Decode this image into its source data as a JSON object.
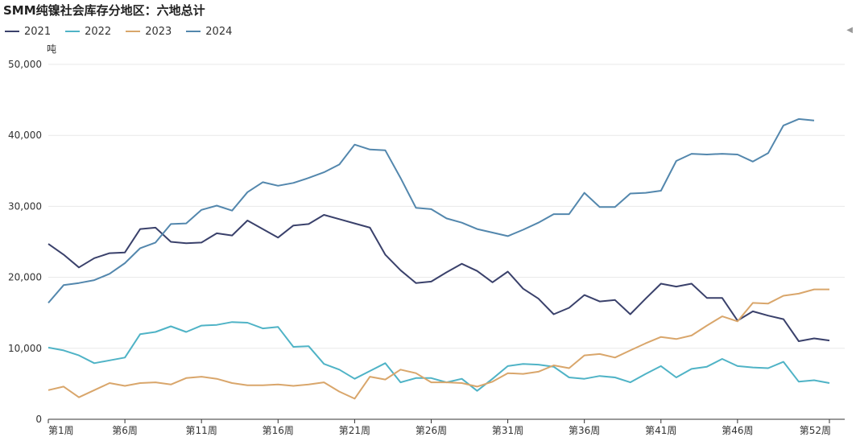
{
  "chart_data": {
    "type": "line",
    "title": "SMM纯镍社会库存分地区：六地总计",
    "unit": "吨",
    "x": [
      "第1周",
      "第2周",
      "第3周",
      "第4周",
      "第5周",
      "第6周",
      "第7周",
      "第8周",
      "第9周",
      "第10周",
      "第11周",
      "第12周",
      "第13周",
      "第14周",
      "第15周",
      "第16周",
      "第17周",
      "第18周",
      "第19周",
      "第20周",
      "第21周",
      "第22周",
      "第23周",
      "第24周",
      "第25周",
      "第26周",
      "第27周",
      "第28周",
      "第29周",
      "第30周",
      "第31周",
      "第32周",
      "第33周",
      "第34周",
      "第35周",
      "第36周",
      "第37周",
      "第38周",
      "第39周",
      "第40周",
      "第41周",
      "第42周",
      "第43周",
      "第44周",
      "第45周",
      "第46周",
      "第47周",
      "第48周",
      "第49周",
      "第50周",
      "第51周",
      "第52周",
      "第53周"
    ],
    "x_tick_labels": [
      "第1周",
      "第6周",
      "第11周",
      "第16周",
      "第21周",
      "第26周",
      "第31周",
      "第36周",
      "第41周",
      "第46周",
      "第52周"
    ],
    "y_tick_labels": [
      "0",
      "10,000",
      "20,000",
      "30,000",
      "40,000",
      "50,000"
    ],
    "ylim": [
      0,
      50000
    ],
    "legend_position": "top-left",
    "grid": true,
    "series": [
      {
        "name": "2021",
        "color": "#3a416b",
        "values": [
          24700,
          23200,
          21400,
          22700,
          23400,
          23500,
          26800,
          27000,
          25000,
          24800,
          24900,
          26200,
          25900,
          28000,
          26800,
          25600,
          27300,
          27500,
          28800,
          28200,
          27600,
          27000,
          23200,
          21000,
          19200,
          19400,
          20700,
          21900,
          20900,
          19300,
          20800,
          18400,
          17000,
          14800,
          15700,
          17500,
          16600,
          16800,
          14800,
          17000,
          19100,
          18700,
          19100,
          17100,
          17100,
          13900,
          15200,
          14600,
          14100,
          11000,
          11400,
          11100,
          null
        ]
      },
      {
        "name": "2022",
        "color": "#4fb3c6",
        "values": [
          10100,
          9700,
          9000,
          7900,
          8300,
          8700,
          12000,
          12300,
          13100,
          12300,
          13200,
          13300,
          13700,
          13600,
          12800,
          13000,
          10200,
          10300,
          7800,
          7000,
          5700,
          6800,
          7900,
          5200,
          5800,
          5800,
          5200,
          5700,
          4000,
          5700,
          7500,
          7800,
          7700,
          7400,
          5900,
          5700,
          6100,
          5900,
          5200,
          6400,
          7500,
          5900,
          7100,
          7400,
          8500,
          7500,
          7300,
          7200,
          8100,
          5300,
          5500,
          5100,
          null
        ]
      },
      {
        "name": "2023",
        "color": "#d9a66b",
        "values": [
          4100,
          4600,
          3100,
          4100,
          5100,
          4700,
          5100,
          5200,
          4900,
          5800,
          6000,
          5700,
          5100,
          4800,
          4800,
          4900,
          4700,
          4900,
          5200,
          3900,
          2900,
          6000,
          5600,
          7000,
          6500,
          5200,
          5200,
          5100,
          4600,
          5300,
          6500,
          6400,
          6700,
          7600,
          7200,
          9000,
          9200,
          8700,
          9700,
          10700,
          11600,
          11300,
          11800,
          13200,
          14500,
          13800,
          16400,
          16300,
          17400,
          17700,
          18300,
          18300,
          null
        ]
      },
      {
        "name": "2024",
        "color": "#5387ad",
        "values": [
          16400,
          18900,
          19200,
          19600,
          20500,
          22000,
          24100,
          24900,
          27500,
          27600,
          29500,
          30100,
          29400,
          32000,
          33400,
          32900,
          33300,
          34000,
          34800,
          35900,
          38700,
          38000,
          37900,
          34000,
          29800,
          29600,
          28300,
          27700,
          26800,
          26300,
          25800,
          26700,
          27700,
          28900,
          28900,
          31900,
          29900,
          29900,
          31800,
          31900,
          32200,
          36400,
          37400,
          37300,
          37400,
          37300,
          36300,
          37500,
          41400,
          42300,
          42100,
          null,
          null
        ]
      }
    ]
  }
}
